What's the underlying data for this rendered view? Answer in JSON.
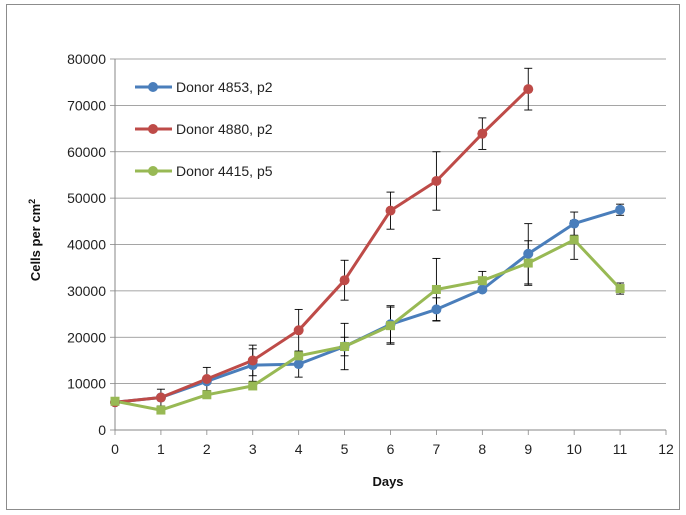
{
  "chart_data": {
    "type": "line",
    "title": "",
    "xlabel": "Days",
    "ylabel_main": "Cells per cm",
    "ylabel_sup": "2",
    "xlim": [
      0,
      12
    ],
    "ylim": [
      0,
      80000
    ],
    "xticks": [
      "0",
      "1",
      "2",
      "3",
      "4",
      "5",
      "6",
      "7",
      "8",
      "9",
      "10",
      "11",
      "12"
    ],
    "yticks": [
      "0",
      "10000",
      "20000",
      "30000",
      "40000",
      "50000",
      "60000",
      "70000",
      "80000"
    ],
    "grid": "horizontal",
    "legend_position": "top-left",
    "series": [
      {
        "name": "Donor 4853, p2",
        "color": "#4a7ebb",
        "marker": "circle",
        "x": [
          0,
          1,
          2,
          3,
          4,
          5,
          6,
          7,
          8,
          9,
          10,
          11
        ],
        "y": [
          6000,
          7000,
          10500,
          14000,
          14200,
          18000,
          22800,
          26000,
          30300,
          38000,
          44500,
          47500
        ],
        "err": [
          null,
          null,
          null,
          3500,
          2800,
          5000,
          4000,
          2500,
          null,
          6500,
          2500,
          1200
        ]
      },
      {
        "name": "Donor 4880, p2",
        "color": "#be4b48",
        "marker": "circle",
        "x": [
          0,
          1,
          2,
          3,
          4,
          5,
          6,
          7,
          8,
          9
        ],
        "y": [
          6000,
          7000,
          11000,
          15000,
          21500,
          32300,
          47300,
          53700,
          63900,
          73500
        ],
        "err": [
          null,
          1800,
          2500,
          3300,
          4500,
          4300,
          4000,
          6300,
          3400,
          4500
        ]
      },
      {
        "name": "Donor 4415, p5",
        "color": "#98b954",
        "marker": "square",
        "x": [
          0,
          1,
          2,
          3,
          4,
          5,
          6,
          7,
          8,
          9,
          10,
          11
        ],
        "y": [
          6200,
          4300,
          7600,
          9500,
          16000,
          18000,
          22500,
          30300,
          32200,
          36000,
          41000,
          30500
        ],
        "err": [
          null,
          null,
          null,
          null,
          null,
          2000,
          4000,
          6700,
          2000,
          4800,
          4200,
          1200
        ]
      }
    ]
  }
}
